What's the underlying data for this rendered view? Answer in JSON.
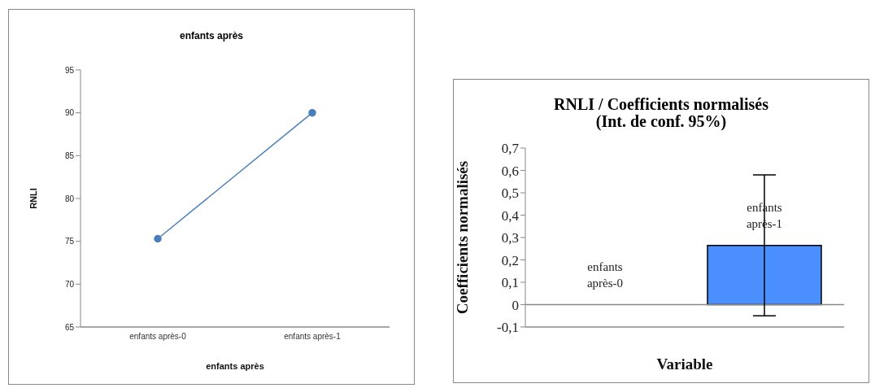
{
  "chart_data": [
    {
      "type": "line",
      "title": "enfants après",
      "xlabel": "enfants après",
      "ylabel": "RNLI",
      "categories": [
        "enfants après-0",
        "enfants après-1"
      ],
      "values": [
        75.3,
        90.0
      ],
      "color": "#4a7ebb",
      "ylim": [
        65,
        95
      ],
      "yticks": [
        65,
        70,
        75,
        80,
        85,
        90,
        95
      ],
      "grid": false,
      "marker": "circle",
      "line_style": "solid"
    },
    {
      "type": "bar",
      "title": "RNLI / Coefficients normalisés\n(Int. de conf. 95%)",
      "xlabel": "Variable",
      "ylabel": "Coefficients normalisés",
      "categories": [
        "enfants\naprès-0",
        "enfants\naprès-1"
      ],
      "values": [
        0,
        0.265
      ],
      "color": "#4a8ffd",
      "errors": [
        null,
        [
          -0.05,
          0.58
        ]
      ],
      "ylim": [
        -0.1,
        0.7
      ],
      "yticks": [
        {
          "value": -0.1,
          "label": "-0,1"
        },
        {
          "value": 0,
          "label": "0"
        },
        {
          "value": 0.1,
          "label": "0,1"
        },
        {
          "value": 0.2,
          "label": "0,2"
        },
        {
          "value": 0.3,
          "label": "0,3"
        },
        {
          "value": 0.4,
          "label": "0,4"
        },
        {
          "value": 0.5,
          "label": "0,5"
        },
        {
          "value": 0.6,
          "label": "0,6"
        },
        {
          "value": 0.7,
          "label": "0,7"
        }
      ],
      "grid": false
    }
  ]
}
